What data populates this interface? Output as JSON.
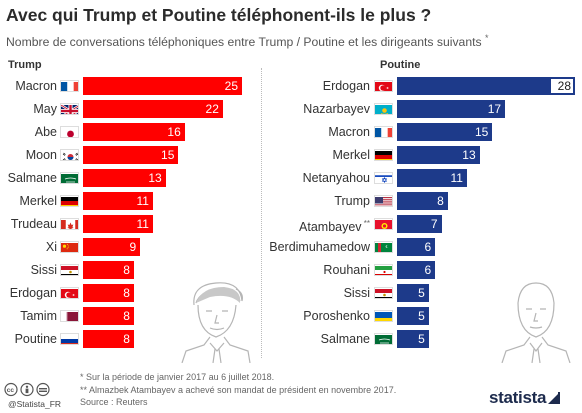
{
  "header": {
    "title": "Avec qui Trump et Poutine téléphonent-ils le plus ?",
    "subtitle": "Nombre de conversations téléphoniques entre Trump / Poutine et les dirigeants suivants",
    "subtitle_mark": "*"
  },
  "chart_data": [
    {
      "type": "bar",
      "orientation": "horizontal",
      "title": "Trump",
      "bar_color": "#ff0000",
      "categories": [
        "Macron",
        "May",
        "Abe",
        "Moon",
        "Salmane",
        "Merkel",
        "Trudeau",
        "Xi",
        "Sissi",
        "Erdogan",
        "Tamim",
        "Poutine"
      ],
      "values": [
        25,
        22,
        16,
        15,
        13,
        11,
        11,
        9,
        8,
        8,
        8,
        8
      ],
      "flags": [
        "france",
        "uk",
        "japan",
        "south-korea",
        "saudi-arabia",
        "germany",
        "canada",
        "china",
        "egypt",
        "turkey",
        "qatar",
        "russia"
      ],
      "xlim": [
        0,
        25
      ]
    },
    {
      "type": "bar",
      "orientation": "horizontal",
      "title": "Poutine",
      "bar_color": "#1d3a8a",
      "categories": [
        "Erdogan",
        "Nazarbayev",
        "Macron",
        "Merkel",
        "Netanyahou",
        "Trump",
        "Atambayev",
        "Berdimuhamedow",
        "Rouhani",
        "Sissi",
        "Poroshenko",
        "Salmane"
      ],
      "category_marks": [
        "",
        "",
        "",
        "",
        "",
        "",
        "**",
        "",
        "",
        "",
        "",
        ""
      ],
      "values": [
        28,
        17,
        15,
        13,
        11,
        8,
        7,
        6,
        6,
        5,
        5,
        5
      ],
      "flags": [
        "turkey",
        "kazakhstan",
        "france",
        "germany",
        "israel",
        "usa",
        "kyrgyzstan",
        "turkmenistan",
        "iran",
        "egypt",
        "ukraine",
        "saudi-arabia"
      ],
      "xlim": [
        0,
        28
      ]
    }
  ],
  "footer": {
    "note1": "*   Sur la période de janvier 2017 au 6 juillet 2018.",
    "note2": "**  Almazbek Atambayev a achevé son mandat de président en novembre 2017.",
    "source": "Source : Reuters",
    "credit": "@Statista_FR",
    "brand": "statista"
  },
  "icons": {
    "license": "creative-commons-icons",
    "left_portrait": "trump-portrait-illustration",
    "right_portrait": "putin-portrait-illustration"
  }
}
